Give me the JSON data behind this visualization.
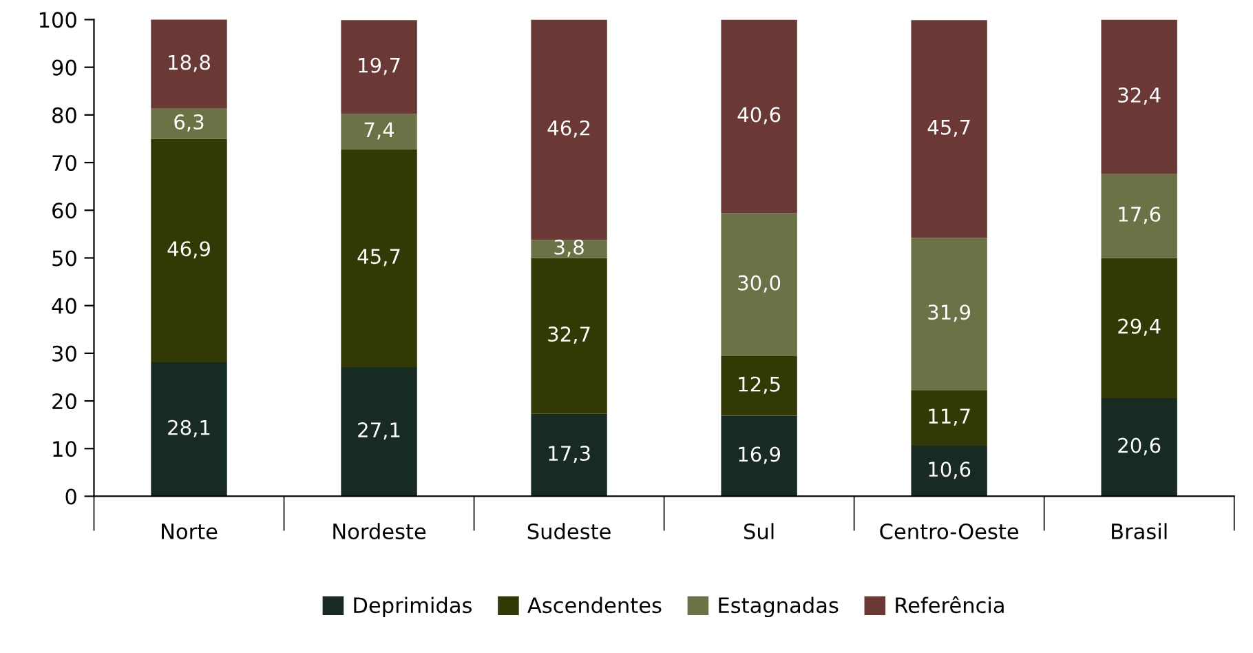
{
  "chart_data": {
    "type": "bar",
    "stacked": true,
    "categories": [
      "Norte",
      "Nordeste",
      "Sudeste",
      "Sul",
      "Centro-Oeste",
      "Brasil"
    ],
    "series": [
      {
        "name": "Deprimidas",
        "color": "#172b22",
        "values": [
          28.1,
          27.1,
          17.3,
          16.9,
          10.6,
          20.6
        ],
        "value_labels": [
          "28,1",
          "27,1",
          "17,3",
          "16,9",
          "10,6",
          "20,6"
        ]
      },
      {
        "name": "Ascendentes",
        "color": "#323905",
        "values": [
          46.9,
          45.7,
          32.7,
          12.5,
          11.7,
          29.4
        ],
        "value_labels": [
          "46,9",
          "45,7",
          "32,7",
          "12,5",
          "11,7",
          "29,4"
        ]
      },
      {
        "name": "Estagnadas",
        "color": "#6a7345",
        "values": [
          6.3,
          7.4,
          3.8,
          30.0,
          31.9,
          17.6
        ],
        "value_labels": [
          "6,3",
          "7,4",
          "3,8",
          "30,0",
          "31,9",
          "17,6"
        ]
      },
      {
        "name": "Referência",
        "color": "#6b3935",
        "values": [
          18.8,
          19.7,
          46.2,
          40.6,
          45.7,
          32.4
        ],
        "value_labels": [
          "18,8",
          "19,7",
          "46,2",
          "40,6",
          "45,7",
          "32,4"
        ]
      }
    ],
    "ylim": [
      0,
      100
    ],
    "yticks": [
      0,
      10,
      20,
      30,
      40,
      50,
      60,
      70,
      80,
      90,
      100
    ],
    "grid": false,
    "legend": "bottom"
  }
}
